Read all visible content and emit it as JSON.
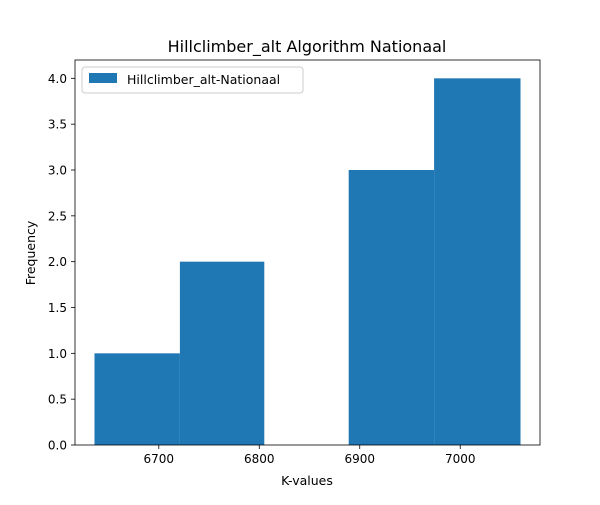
{
  "chart_data": {
    "type": "bar",
    "title": "Hillclimber_alt Algorithm Nationaal",
    "xlabel": "K-values",
    "ylabel": "Frequency",
    "xlim": [
      6616.6,
      6079.4
    ],
    "ylim": [
      0,
      4.2
    ],
    "xticks": [
      6700,
      6800,
      6900,
      7000
    ],
    "xtick_labels": [
      "6700",
      "6800",
      "6900",
      "7000"
    ],
    "yticks": [
      0,
      0.5,
      1,
      1.5,
      2,
      2.5,
      3,
      3.5,
      4
    ],
    "ytick_labels": [
      "0.0",
      "0.5",
      "1.0",
      "1.5",
      "2.0",
      "2.5",
      "3.0",
      "3.5",
      "4.0"
    ],
    "grid": false,
    "legend_position": "top-left",
    "series": [
      {
        "name": "Hillclimber_alt-Nationaal",
        "color": "#1f77b4",
        "bins": [
          {
            "x0": 6636,
            "x1": 6721,
            "count": 1
          },
          {
            "x0": 6721,
            "x1": 6805,
            "count": 2
          },
          {
            "x0": 6805,
            "x1": 6889,
            "count": 0
          },
          {
            "x0": 6889,
            "x1": 6974,
            "count": 3
          },
          {
            "x0": 6974,
            "x1": 7060,
            "count": 4
          }
        ]
      }
    ]
  }
}
